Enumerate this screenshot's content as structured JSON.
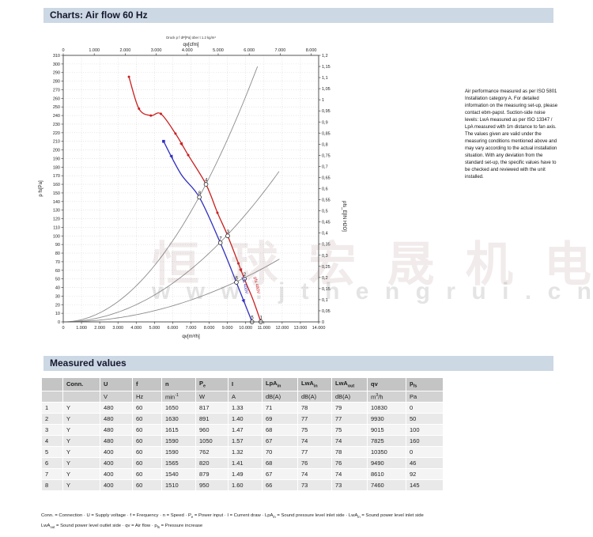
{
  "header": {
    "title": "Charts: Air flow 60 Hz"
  },
  "section_measured": {
    "title": "Measured values"
  },
  "notes": {
    "text": "Air performance measured as per ISO 5801\nInstallation category A. For detailed\ninformation on the measuring set-up, please\ncontact ebm-papst. Suction-side noise\nlevels: LwA measured as per ISO 13347 /\nLpA measured with 1m distance to fan axis.\nThe values given are valid under the\nmeasuring conditions mentioned above and\nmay vary according to the actual installation\nsituation. With any deviation from the\nstandard set-up, the specific values have to\nbe checked and reviewed with the unit\ninstalled."
  },
  "watermark": {
    "cn_chars": [
      "恒",
      "球",
      "宏",
      "晟",
      "机",
      "电"
    ],
    "url_chars": [
      "w",
      "w",
      "w",
      ".",
      "j",
      "t",
      "h",
      "e",
      "n",
      "g",
      "r",
      "u",
      "i",
      ".",
      "c",
      "n"
    ]
  },
  "chart_data": {
    "type": "line",
    "annotation": "Druck p f dP[Pa] über t 1.2 kg/m³",
    "grid": true,
    "axes": {
      "bottom": {
        "label": "qv[m³/h]",
        "min": 0,
        "max": 14000,
        "step": 1000
      },
      "top": {
        "label": "qv[cfm]",
        "min": 0,
        "max": 8000,
        "step": 1000,
        "factor_to_bottom": 1.699
      },
      "left": {
        "label": "p fs[Pa]",
        "min": 0,
        "max": 310,
        "step": 10
      },
      "right": {
        "label": "pfs_E[IN H2O]",
        "min": 0,
        "max": 1.2,
        "step": 0.05
      }
    },
    "system_curve_color": "#8c8c8c",
    "system_curves": [
      {
        "k": 2.62e-06,
        "qmax": 10650
      },
      {
        "k": 1.25e-06,
        "qmax": 11830
      },
      {
        "k": 5.2e-07,
        "qmax": 11850
      }
    ],
    "series": [
      {
        "name": "pfs 480V",
        "color": "#cb1f1f",
        "points": [
          [
            3600,
            285
          ],
          [
            4150,
            248
          ],
          [
            4800,
            240
          ],
          [
            5350,
            242
          ],
          [
            6150,
            219
          ],
          [
            6850,
            194
          ],
          [
            7825,
            160
          ],
          [
            8450,
            127
          ],
          [
            9015,
            100
          ],
          [
            9930,
            50
          ],
          [
            10400,
            26
          ],
          [
            10830,
            0
          ]
        ],
        "numbered_points": [
          {
            "n": "4",
            "q": 7825,
            "p": 160
          },
          {
            "n": "3",
            "q": 9015,
            "p": 100
          },
          {
            "n": "2",
            "q": 9930,
            "p": 50
          },
          {
            "n": "1",
            "q": 10830,
            "p": 0
          }
        ],
        "dots": [
          3600,
          4150,
          4800,
          5350,
          6150,
          6850,
          8450,
          9600
        ],
        "arrows": [
          6500,
          9750
        ],
        "label_q": 10450
      },
      {
        "name": "pfs 400V",
        "color": "#2f2fc0",
        "points": [
          [
            5500,
            210
          ],
          [
            6450,
            172
          ],
          [
            7460,
            145
          ],
          [
            8610,
            92
          ],
          [
            9490,
            46
          ],
          [
            10350,
            0
          ]
        ],
        "numbered_points": [
          {
            "n": "8",
            "q": 7460,
            "p": 145
          },
          {
            "n": "7",
            "q": 8610,
            "p": 92
          },
          {
            "n": "6",
            "q": 9490,
            "p": 46
          },
          {
            "n": "5",
            "q": 10350,
            "p": 0
          }
        ],
        "dots": [
          5500
        ],
        "arrows": [
          5950,
          9900
        ],
        "label_q": 9800
      }
    ]
  },
  "table": {
    "columns": [
      "",
      "Conn.",
      "U",
      "f",
      "n",
      "P_{e}",
      "I",
      "LpA_{in}",
      "LwA_{in}",
      "LwA_{out}",
      "qv",
      "p_{fs}"
    ],
    "units": [
      "",
      "",
      "V",
      "Hz",
      "min^{-1}",
      "W",
      "A",
      "dB(A)",
      "dB(A)",
      "dB(A)",
      "m^{3}/h",
      "Pa"
    ],
    "rows": [
      [
        "1",
        "Y",
        "480",
        "60",
        "1650",
        "817",
        "1.33",
        "71",
        "78",
        "79",
        "10830",
        "0"
      ],
      [
        "2",
        "Y",
        "480",
        "60",
        "1630",
        "891",
        "1.40",
        "69",
        "77",
        "77",
        "9930",
        "50"
      ],
      [
        "3",
        "Y",
        "480",
        "60",
        "1615",
        "960",
        "1.47",
        "68",
        "75",
        "75",
        "9015",
        "100"
      ],
      [
        "4",
        "Y",
        "480",
        "60",
        "1590",
        "1050",
        "1.57",
        "67",
        "74",
        "74",
        "7825",
        "160"
      ],
      [
        "5",
        "Y",
        "400",
        "60",
        "1590",
        "762",
        "1.32",
        "70",
        "77",
        "78",
        "10350",
        "0"
      ],
      [
        "6",
        "Y",
        "400",
        "60",
        "1565",
        "820",
        "1.41",
        "68",
        "76",
        "76",
        "9490",
        "46"
      ],
      [
        "7",
        "Y",
        "400",
        "60",
        "1540",
        "879",
        "1.49",
        "67",
        "74",
        "74",
        "8610",
        "92"
      ],
      [
        "8",
        "Y",
        "400",
        "60",
        "1510",
        "950",
        "1.60",
        "66",
        "73",
        "73",
        "7460",
        "145"
      ]
    ]
  },
  "legend": {
    "line1": "Conn. = Connection · U = Supply voltage · f = Frequency · n = Speed · P_{e} = Power input · I = Current draw · LpA_{in} = Sound pressure level inlet side · LwA_{in} = Sound power level inlet side",
    "line2": "LwA_{out} = Sound power level outlet side · qv = Air flow · p_{fs} = Pressure increase"
  }
}
